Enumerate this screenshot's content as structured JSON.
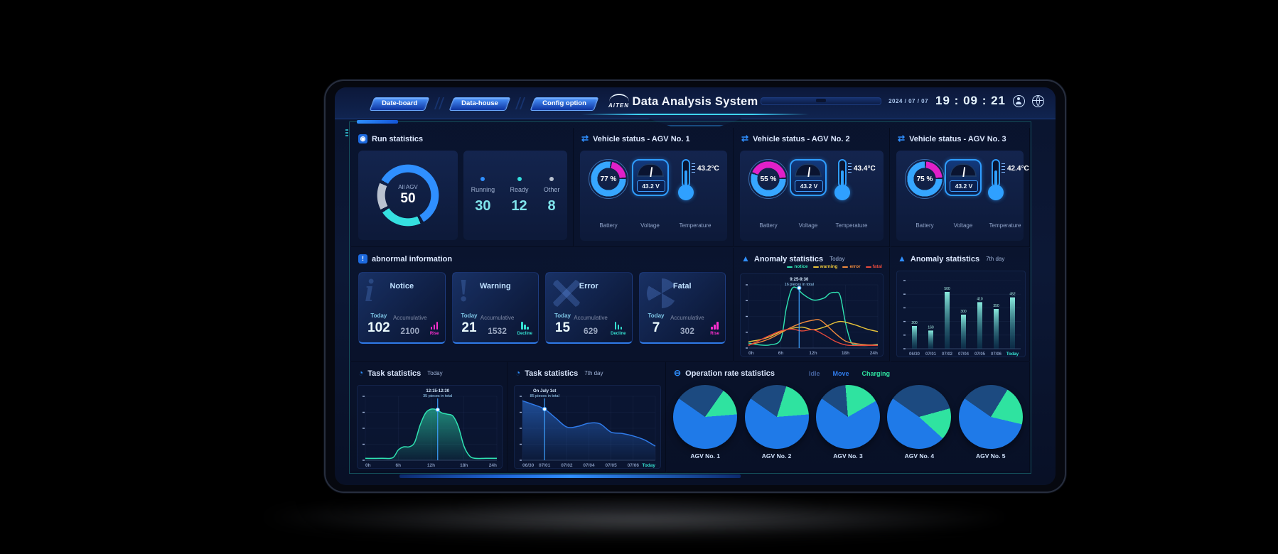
{
  "header": {
    "tabs": [
      {
        "label": "Date-board"
      },
      {
        "label": "Data-house"
      },
      {
        "label": "Config option"
      }
    ],
    "logo_text": "AiTEN",
    "title": "Data Analysis System",
    "date": "2024 / 07 / 07",
    "time": "19 : 09 : 21"
  },
  "icons": {
    "run": "◉",
    "vehicle": "⇄",
    "abnormal": "!",
    "anomaly": "▲",
    "task": "◔",
    "operation": "⊖"
  },
  "run_statistics": {
    "title": "Run statistics",
    "gauge": {
      "label": "All AGV",
      "value": "50"
    },
    "stats": [
      {
        "label": "Running",
        "value": "30",
        "color": "#2f8fff"
      },
      {
        "label": "Ready",
        "value": "12",
        "color": "#35e0e0"
      },
      {
        "label": "Other",
        "value": "8",
        "color": "#b9c2d0"
      }
    ]
  },
  "vehicle_status": {
    "metric_labels": {
      "battery": "Battery",
      "voltage": "Voltage",
      "temperature": "Temperature"
    },
    "battery_color": "#36a6ff",
    "battery_rest_color": "#e020c8",
    "vehicles": [
      {
        "title": "Vehicle status - AGV No. 1",
        "battery_pct": 77,
        "battery_text": "77 %",
        "voltage": "43.2 V",
        "temperature": "43.2°C"
      },
      {
        "title": "Vehicle status - AGV No. 2",
        "battery_pct": 55,
        "battery_text": "55 %",
        "voltage": "43.2 V",
        "temperature": "43.4°C"
      },
      {
        "title": "Vehicle status - AGV No. 3",
        "battery_pct": 75,
        "battery_text": "75 %",
        "voltage": "43.2 V",
        "temperature": "42.4°C"
      }
    ]
  },
  "abnormal_information": {
    "title": "abnormal information",
    "today_label": "Today",
    "accumulative_label": "Accumulative",
    "cards": [
      {
        "name": "Notice",
        "ghost": "i",
        "today": "102",
        "accumulative": "2100",
        "trend": "Rise",
        "trend_dir": "up"
      },
      {
        "name": "Warning",
        "ghost": "!",
        "today": "21",
        "accumulative": "1532",
        "trend": "Decline",
        "trend_dir": "down"
      },
      {
        "name": "Error",
        "ghost": "",
        "today": "15",
        "accumulative": "629",
        "trend": "Decline",
        "trend_dir": "down"
      },
      {
        "name": "Fatal",
        "ghost": "",
        "today": "7",
        "accumulative": "302",
        "trend": "Rise",
        "trend_dir": "up"
      }
    ]
  },
  "panels": {
    "anomaly_today": {
      "title": "Anomaly statistics",
      "subtitle": "Today"
    },
    "anomaly_7day": {
      "title": "Anomaly statistics",
      "subtitle": "7th day"
    },
    "task_today": {
      "title": "Task statistics",
      "subtitle": "Today"
    },
    "task_7day": {
      "title": "Task statistics",
      "subtitle": "7th day"
    },
    "operation_rate": {
      "title": "Operation rate statistics"
    }
  },
  "chart_data": [
    {
      "id": "anomaly_today",
      "type": "line",
      "title": "Anomaly statistics",
      "subtitle": "Today",
      "x_ticks": [
        "0h",
        "6h",
        "12h",
        "18h",
        "24h"
      ],
      "x_range": [
        0,
        24
      ],
      "ylim": [
        0,
        100
      ],
      "grid": true,
      "legend_position": "top-right",
      "series": [
        {
          "name": "notice",
          "color": "#2fe3b2",
          "points": [
            [
              0,
              8
            ],
            [
              2,
              5
            ],
            [
              4,
              5
            ],
            [
              6,
              14
            ],
            [
              7,
              62
            ],
            [
              8,
              93
            ],
            [
              9,
              95
            ],
            [
              10,
              86
            ],
            [
              12,
              76
            ],
            [
              14,
              79
            ],
            [
              15,
              86
            ],
            [
              16,
              88
            ],
            [
              17,
              83
            ],
            [
              18,
              40
            ],
            [
              19,
              10
            ],
            [
              20,
              5
            ],
            [
              22,
              4
            ],
            [
              24,
              6
            ]
          ]
        },
        {
          "name": "warning",
          "color": "#e8c33a",
          "points": [
            [
              0,
              10
            ],
            [
              2,
              13
            ],
            [
              4,
              18
            ],
            [
              6,
              26
            ],
            [
              8,
              31
            ],
            [
              10,
              33
            ],
            [
              12,
              29
            ],
            [
              14,
              33
            ],
            [
              16,
              40
            ],
            [
              17,
              42
            ],
            [
              18,
              41
            ],
            [
              20,
              36
            ],
            [
              22,
              30
            ],
            [
              24,
              26
            ]
          ]
        },
        {
          "name": "error",
          "color": "#f08a3c",
          "points": [
            [
              0,
              5
            ],
            [
              2,
              9
            ],
            [
              4,
              15
            ],
            [
              6,
              24
            ],
            [
              8,
              33
            ],
            [
              10,
              40
            ],
            [
              12,
              44
            ],
            [
              13,
              45
            ],
            [
              14,
              40
            ],
            [
              16,
              24
            ],
            [
              18,
              11
            ],
            [
              20,
              7
            ],
            [
              22,
              5
            ],
            [
              24,
              5
            ]
          ]
        },
        {
          "name": "fatal",
          "color": "#e84a3c",
          "points": [
            [
              0,
              4
            ],
            [
              2,
              12
            ],
            [
              4,
              20
            ],
            [
              6,
              27
            ],
            [
              8,
              30
            ],
            [
              10,
              27
            ],
            [
              12,
              29
            ],
            [
              14,
              21
            ],
            [
              16,
              11
            ],
            [
              18,
              5
            ],
            [
              20,
              4
            ],
            [
              22,
              4
            ],
            [
              24,
              4
            ]
          ]
        }
      ],
      "annotation": {
        "x": 9.4,
        "y": 95,
        "line1": "9:25-9:30",
        "line2": "16 pieces in total"
      }
    },
    {
      "id": "anomaly_7day",
      "type": "bar",
      "title": "Anomaly statistics",
      "subtitle": "7th day",
      "categories": [
        "06/30",
        "07/01",
        "07/02",
        "07/04",
        "07/05",
        "07/06",
        "Today"
      ],
      "values": [
        200,
        160,
        500,
        300,
        410,
        350,
        452
      ],
      "ylim": [
        0,
        600
      ],
      "grid": true,
      "bar_color": "#35e0d0",
      "highlight_last_x": true
    },
    {
      "id": "task_today",
      "type": "area",
      "title": "Task statistics",
      "subtitle": "Today",
      "x_ticks": [
        "0h",
        "6h",
        "12h",
        "18h",
        "24h"
      ],
      "x_range": [
        0,
        24
      ],
      "ylim": [
        0,
        100
      ],
      "grid": true,
      "color": "#2fe3b2",
      "points": [
        [
          0,
          3
        ],
        [
          3,
          3
        ],
        [
          5,
          4
        ],
        [
          6,
          16
        ],
        [
          7,
          21
        ],
        [
          8,
          21
        ],
        [
          9,
          28
        ],
        [
          10,
          55
        ],
        [
          11,
          74
        ],
        [
          12,
          80
        ],
        [
          13,
          79
        ],
        [
          14,
          74
        ],
        [
          15,
          72
        ],
        [
          16,
          69
        ],
        [
          17,
          52
        ],
        [
          18,
          22
        ],
        [
          19,
          7
        ],
        [
          20,
          3
        ],
        [
          22,
          3
        ],
        [
          24,
          3
        ]
      ],
      "annotation": {
        "x": 13.2,
        "y": 79,
        "line1": "12:15-12:30",
        "line2": "35 pieces in total"
      },
      "highlight_last_x": false
    },
    {
      "id": "task_7day",
      "type": "area",
      "title": "Task statistics",
      "subtitle": "7th day",
      "x_ticks": [
        "06/30",
        "07/01",
        "07/02",
        "07/04",
        "07/05",
        "07/06",
        "Today"
      ],
      "x_range": [
        0,
        6
      ],
      "ylim": [
        0,
        100
      ],
      "grid": true,
      "color": "#2f7ae8",
      "points": [
        [
          0,
          93
        ],
        [
          0.5,
          87
        ],
        [
          1,
          80
        ],
        [
          1.5,
          66
        ],
        [
          2,
          52
        ],
        [
          2.5,
          53
        ],
        [
          3,
          58
        ],
        [
          3.5,
          57
        ],
        [
          4,
          44
        ],
        [
          4.5,
          42
        ],
        [
          5,
          38
        ],
        [
          5.5,
          32
        ],
        [
          6,
          22
        ]
      ],
      "annotation": {
        "x": 1,
        "y": 80,
        "line1": "On July 1st",
        "line2": "85 pieces in total"
      },
      "highlight_last_x": true
    },
    {
      "id": "operation_rate",
      "type": "pie",
      "title": "Operation rate statistics",
      "legend": [
        {
          "name": "Idle",
          "color": "#44619c",
          "slice_color": "#1c4a80"
        },
        {
          "name": "Move",
          "color": "#2f7ae8",
          "slice_color": "#1f7ae8"
        },
        {
          "name": "Charging",
          "color": "#2fe3a0",
          "slice_color": "#2fe3a0"
        }
      ],
      "pies": [
        {
          "label": "AGV No. 1",
          "values": {
            "Idle": 25,
            "Move": 61,
            "Charging": 14
          }
        },
        {
          "label": "AGV No. 2",
          "values": {
            "Idle": 20,
            "Move": 61,
            "Charging": 19
          }
        },
        {
          "label": "AGV No. 3",
          "values": {
            "Idle": 14,
            "Move": 68,
            "Charging": 18
          }
        },
        {
          "label": "AGV No. 4",
          "values": {
            "Idle": 36,
            "Move": 48,
            "Charging": 16
          }
        },
        {
          "label": "AGV No. 5",
          "values": {
            "Idle": 24,
            "Move": 56,
            "Charging": 20
          }
        }
      ]
    }
  ]
}
